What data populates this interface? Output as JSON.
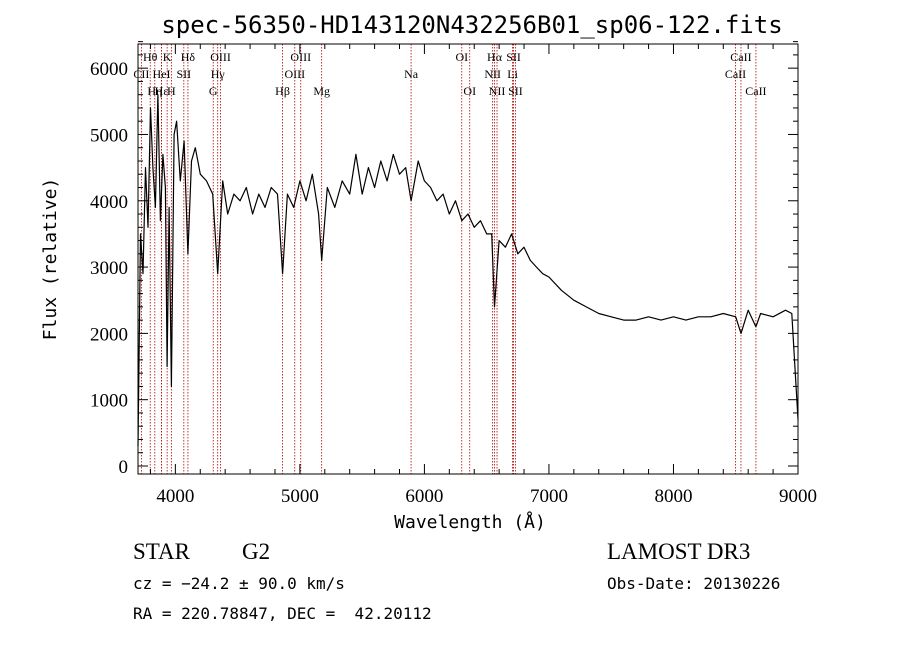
{
  "chart_data": {
    "type": "line",
    "title": "spec-56350-HD143120N432256B01_sp06-122.fits",
    "xlabel": "Wavelength (Å)",
    "ylabel": "Flux (relative)",
    "xlim": [
      3700,
      9000
    ],
    "ylim": [
      0,
      6500
    ],
    "xticks": [
      4000,
      5000,
      6000,
      7000,
      8000,
      9000
    ],
    "yticks": [
      0,
      1000,
      2000,
      3000,
      4000,
      5000,
      6000
    ],
    "xtick_labels": [
      "4000",
      "5000",
      "6000",
      "7000",
      "8000",
      "9000"
    ],
    "ytick_labels": [
      "0",
      "1000",
      "2000",
      "3000",
      "4000",
      "5000",
      "6000"
    ],
    "series": [
      {
        "name": "flux",
        "x": [
          3700,
          3720,
          3740,
          3760,
          3780,
          3800,
          3820,
          3840,
          3860,
          3880,
          3900,
          3920,
          3934,
          3950,
          3968,
          3990,
          4010,
          4040,
          4070,
          4101,
          4130,
          4160,
          4200,
          4250,
          4300,
          4340,
          4380,
          4420,
          4470,
          4520,
          4570,
          4620,
          4670,
          4720,
          4770,
          4820,
          4861,
          4900,
          4950,
          5000,
          5050,
          5100,
          5150,
          5175,
          5220,
          5280,
          5340,
          5400,
          5450,
          5500,
          5550,
          5600,
          5650,
          5700,
          5750,
          5800,
          5850,
          5893,
          5950,
          6000,
          6050,
          6100,
          6150,
          6200,
          6250,
          6300,
          6350,
          6400,
          6450,
          6500,
          6540,
          6563,
          6600,
          6650,
          6700,
          6750,
          6800,
          6850,
          6900,
          6950,
          7000,
          7100,
          7200,
          7300,
          7400,
          7500,
          7600,
          7700,
          7800,
          7900,
          8000,
          8100,
          8200,
          8300,
          8400,
          8500,
          8542,
          8600,
          8662,
          8700,
          8800,
          8900,
          8950,
          9000
        ],
        "y": [
          300,
          3500,
          2900,
          4500,
          3600,
          5400,
          4500,
          3900,
          5600,
          3700,
          4700,
          4200,
          1500,
          3900,
          1200,
          5000,
          5200,
          4300,
          4900,
          3200,
          4600,
          4800,
          4400,
          4300,
          4100,
          2900,
          4300,
          3800,
          4100,
          4000,
          4200,
          3800,
          4100,
          3900,
          4200,
          4100,
          2900,
          4100,
          3900,
          4300,
          4000,
          4400,
          3800,
          3100,
          4200,
          3900,
          4300,
          4100,
          4700,
          4100,
          4500,
          4200,
          4600,
          4300,
          4700,
          4400,
          4500,
          4000,
          4600,
          4300,
          4200,
          4000,
          4100,
          3800,
          4000,
          3700,
          3800,
          3600,
          3700,
          3500,
          3500,
          2400,
          3400,
          3300,
          3500,
          3200,
          3300,
          3100,
          3000,
          2900,
          2850,
          2650,
          2500,
          2400,
          2300,
          2250,
          2200,
          2200,
          2250,
          2200,
          2250,
          2200,
          2250,
          2250,
          2300,
          2250,
          2000,
          2350,
          2100,
          2300,
          2250,
          2350,
          2300,
          700
        ]
      }
    ],
    "spectral_lines": [
      {
        "label": "CII",
        "x": 3727,
        "row": 1
      },
      {
        "label": "Hθ",
        "x": 3798,
        "row": 0
      },
      {
        "label": "Hη",
        "x": 3835,
        "row": 2
      },
      {
        "label": "HeI",
        "x": 3889,
        "row": 1
      },
      {
        "label": "Hε",
        "x": 3889,
        "row": 2
      },
      {
        "label": "K",
        "x": 3934,
        "row": 0
      },
      {
        "label": "H",
        "x": 3968,
        "row": 2
      },
      {
        "label": "Hδ",
        "x": 4101,
        "row": 0
      },
      {
        "label": "SII",
        "x": 4068,
        "row": 1
      },
      {
        "label": "OIII",
        "x": 4363,
        "row": 0
      },
      {
        "label": "Hγ",
        "x": 4340,
        "row": 1
      },
      {
        "label": "G",
        "x": 4304,
        "row": 2
      },
      {
        "label": "Hβ",
        "x": 4861,
        "row": 2
      },
      {
        "label": "OIII",
        "x": 4959,
        "row": 1
      },
      {
        "label": "OIII",
        "x": 5007,
        "row": 0
      },
      {
        "label": "Mg",
        "x": 5175,
        "row": 2
      },
      {
        "label": "Na",
        "x": 5893,
        "row": 1
      },
      {
        "label": "OI",
        "x": 6300,
        "row": 0
      },
      {
        "label": "OI",
        "x": 6364,
        "row": 2
      },
      {
        "label": "Hα",
        "x": 6563,
        "row": 0
      },
      {
        "label": "NII",
        "x": 6548,
        "row": 1
      },
      {
        "label": "NII",
        "x": 6583,
        "row": 2
      },
      {
        "label": "SII",
        "x": 6716,
        "row": 0
      },
      {
        "label": "Li",
        "x": 6708,
        "row": 1
      },
      {
        "label": "SII",
        "x": 6731,
        "row": 2
      },
      {
        "label": "CaII",
        "x": 8542,
        "row": 0
      },
      {
        "label": "CaII",
        "x": 8498,
        "row": 1
      },
      {
        "label": "CaII",
        "x": 8662,
        "row": 2
      }
    ]
  },
  "info": {
    "object_class": "STAR",
    "subclass": "G2",
    "survey": "LAMOST DR3",
    "redshift": "cz = −24.2 ± 90.0 km/s",
    "obs_date": "Obs-Date: 20130226",
    "coords": "RA = 220.78847, DEC =  42.20112"
  },
  "colors": {
    "line": "#000000",
    "marker": "#b00000",
    "background": "#ffffff"
  }
}
